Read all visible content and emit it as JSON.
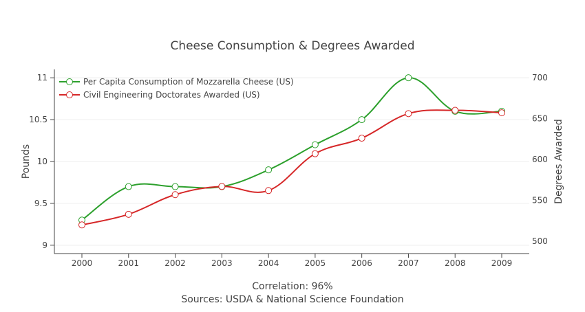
{
  "chart_data": {
    "type": "line",
    "title": "Cheese Consumption & Degrees Awarded",
    "x": [
      "2000",
      "2001",
      "2002",
      "2003",
      "2004",
      "2005",
      "2006",
      "2007",
      "2008",
      "2009"
    ],
    "ylabel": "Pounds",
    "y2label": "Degrees Awarded",
    "yticks": [
      "9",
      "9.5",
      "10",
      "10.5",
      "11"
    ],
    "y2ticks": [
      "500",
      "550",
      "600",
      "650",
      "700"
    ],
    "ylim": [
      8.9,
      11.1
    ],
    "y2lim": [
      485,
      710
    ],
    "grid": true,
    "legend_position": "top-left",
    "series": [
      {
        "name": "Per Capita Consumption of Mozzarella Cheese (US)",
        "axis": "left",
        "color": "#2ca02c",
        "values": [
          9.3,
          9.7,
          9.7,
          9.7,
          9.9,
          10.2,
          10.5,
          11.0,
          10.6,
          10.6
        ]
      },
      {
        "name": "Civil Engineering Doctorates Awarded (US)",
        "axis": "right",
        "color": "#d62728",
        "values": [
          520,
          533,
          557,
          567,
          562,
          607,
          626,
          656,
          660,
          657
        ]
      }
    ],
    "caption_lines": [
      "Correlation: 96%",
      "Sources: USDA & National Science Foundation"
    ]
  }
}
